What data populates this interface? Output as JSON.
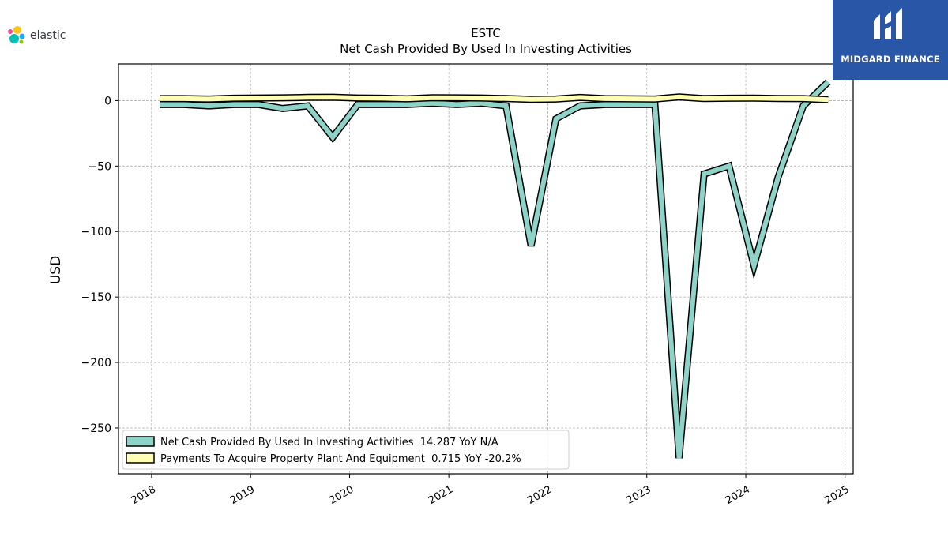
{
  "brand_left": {
    "name": "elastic",
    "icon": "elastic-logo-icon"
  },
  "brand_right": {
    "name": "MIDGARD FINANCE",
    "icon": "midgard-logo-icon",
    "color": "#2a56a8"
  },
  "chart_data": {
    "type": "line",
    "title": "ESTC",
    "subtitle": "Net Cash Provided By Used In Investing Activities",
    "ylabel": "USD",
    "xlabel": "",
    "xlim": [
      "2017-09-01",
      "2025-01-31"
    ],
    "ylim": [
      -285,
      28
    ],
    "x_ticks": [
      "2018",
      "2019",
      "2020",
      "2021",
      "2022",
      "2023",
      "2024",
      "2025"
    ],
    "y_ticks": [
      0,
      -50,
      -100,
      -150,
      -200,
      -250
    ],
    "y_tick_labels": [
      "0",
      "−50",
      "−100",
      "−150",
      "−200",
      "−250"
    ],
    "grid": true,
    "legend_position": "lower-left",
    "x": [
      "2018-01-31",
      "2018-04-30",
      "2018-07-31",
      "2018-10-31",
      "2019-01-31",
      "2019-04-30",
      "2019-07-31",
      "2019-10-31",
      "2020-01-31",
      "2020-04-30",
      "2020-07-31",
      "2020-10-31",
      "2021-01-31",
      "2021-04-30",
      "2021-07-31",
      "2021-10-31",
      "2022-01-31",
      "2022-04-30",
      "2022-07-31",
      "2022-10-31",
      "2023-01-31",
      "2023-04-30",
      "2023-07-31",
      "2023-10-31",
      "2024-01-31",
      "2024-04-30",
      "2024-07-31",
      "2024-10-31"
    ],
    "series": [
      {
        "name": "Net Cash Provided By Used In Investing Activities",
        "legend": "Net Cash Provided By Used In Investing Activities  14.287 YoY N/A",
        "color": "#8dd3c7",
        "values": [
          -3,
          -3,
          -4,
          -3,
          -3,
          -6,
          -4,
          -28,
          -3,
          -3,
          -3,
          -2,
          -3,
          -2,
          -4,
          -111,
          -14,
          -4,
          -3,
          -3,
          -3,
          -273,
          -56,
          -50,
          -126,
          -58,
          -4,
          14.3
        ]
      },
      {
        "name": "Payments To Acquire Property Plant And Equipment",
        "legend": "Payments To Acquire Property Plant And Equipment  0.715 YoY -20.2%",
        "color": "#ffffb3",
        "values": [
          1.5,
          1.5,
          1.2,
          1.8,
          2.0,
          2.1,
          2.5,
          2.6,
          2.0,
          1.8,
          1.4,
          2.2,
          2.1,
          2.0,
          1.6,
          1.0,
          1.2,
          2.4,
          1.5,
          1.4,
          1.2,
          2.8,
          1.6,
          1.8,
          1.9,
          1.6,
          1.5,
          0.7
        ]
      }
    ]
  }
}
